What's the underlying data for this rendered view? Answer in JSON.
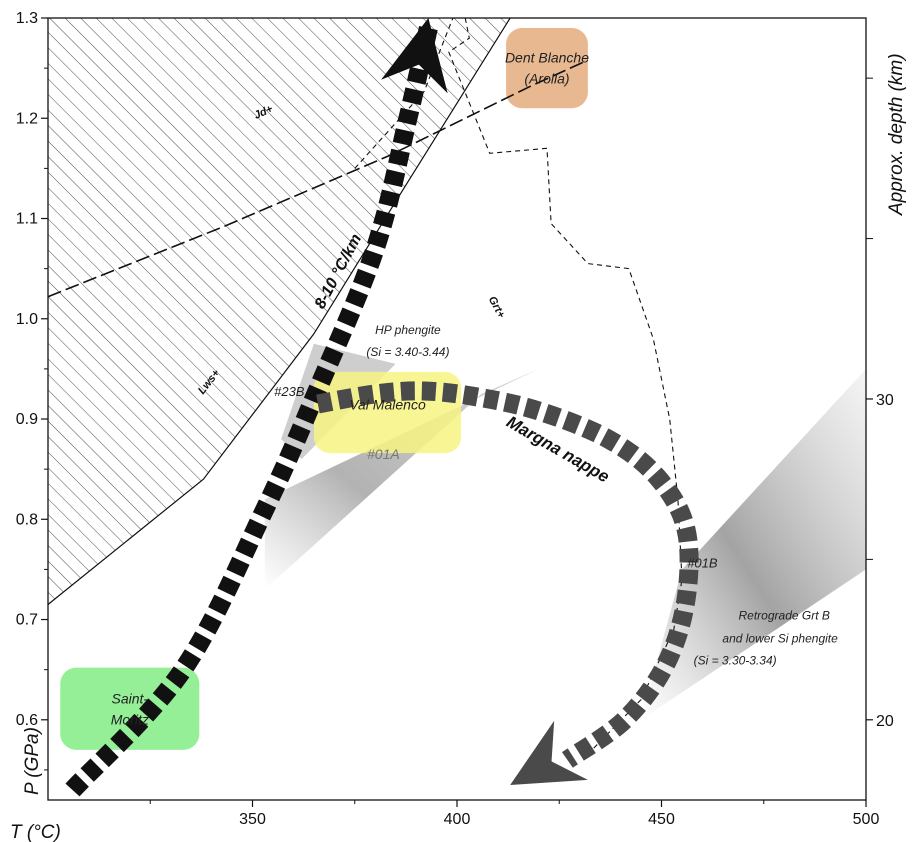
{
  "chart_data": {
    "type": "line",
    "xlabel": "T (°C)",
    "ylabel": "P (GPa)",
    "y2label": "Approx. depth (km)",
    "xlim": [
      300,
      500
    ],
    "ylim": [
      0.52,
      1.3
    ],
    "x_ticks": [
      350,
      400,
      450,
      500
    ],
    "y_ticks": [
      0.6,
      0.7,
      0.8,
      0.9,
      1.0,
      1.1,
      1.2,
      1.3
    ],
    "depth_ticks": [
      {
        "p": 0.92,
        "label": "30"
      },
      {
        "p": 0.6,
        "label": "20"
      }
    ],
    "grid": false,
    "series": [
      {
        "name": "prograde-path",
        "x": [
          306,
          333,
          353,
          366,
          380,
          388,
          393
        ],
        "y": [
          0.53,
          0.65,
          0.81,
          0.93,
          1.07,
          1.2,
          1.29
        ]
      },
      {
        "name": "Margna nappe",
        "x": [
          366,
          380,
          392,
          405,
          420,
          437,
          449,
          456,
          456,
          451,
          441,
          427
        ],
        "y": [
          0.915,
          0.925,
          0.928,
          0.922,
          0.908,
          0.88,
          0.842,
          0.79,
          0.72,
          0.655,
          0.6,
          0.56
        ]
      }
    ],
    "reaction_lines": [
      {
        "label": "Lws+",
        "style": "solid",
        "x": [
          300,
          338,
          365,
          387,
          413
        ],
        "y": [
          0.715,
          0.84,
          0.985,
          1.13,
          1.3
        ]
      },
      {
        "label": "Jd+",
        "style": "longdash",
        "x": [
          300,
          343,
          383,
          418,
          432
        ],
        "y": [
          1.022,
          1.092,
          1.162,
          1.232,
          1.258
        ]
      },
      {
        "label": "Grt+",
        "style": "dashed",
        "x": [
          402,
          403,
          398,
          408,
          422,
          423,
          432,
          442,
          448,
          452,
          454,
          455,
          453,
          445,
          433
        ],
        "y": [
          1.3,
          1.28,
          1.266,
          1.165,
          1.17,
          1.095,
          1.055,
          1.05,
          0.98,
          0.9,
          0.82,
          0.74,
          0.69,
          0.62,
          0.57
        ]
      },
      {
        "label": "",
        "style": "dashed",
        "x": [
          375,
          392,
          396,
          399,
          403
        ],
        "y": [
          1.15,
          1.227,
          1.269,
          1.3,
          1.3
        ]
      }
    ],
    "regions": [
      {
        "name": "dent-blanche",
        "label_lines": [
          "Dent Blanche",
          "(Arolla)"
        ],
        "color": "#E7B48A",
        "x": [
          412,
          432
        ],
        "y": [
          1.21,
          1.29
        ]
      },
      {
        "name": "val-malenco",
        "label_lines": [
          "Val Malenco"
        ],
        "color": "#F7F481",
        "x": [
          365,
          401
        ],
        "y": [
          0.866,
          0.947
        ]
      },
      {
        "name": "saint-moritz",
        "label_lines": [
          "Saint-",
          "Moritz"
        ],
        "color": "#8EEE91",
        "x": [
          303,
          337
        ],
        "y": [
          0.57,
          0.652
        ]
      }
    ],
    "annotations": [
      {
        "name": "gradient",
        "text": "8-10 °C/km",
        "x": 372,
        "y": 1.045,
        "angle": -62
      },
      {
        "name": "hp-phengite-1",
        "text": "HP phengite",
        "x": 388,
        "y": 0.985,
        "angle": 0
      },
      {
        "name": "hp-phengite-2",
        "text": "(Si = 3.40-3.44)",
        "x": 388,
        "y": 0.963,
        "angle": 0
      },
      {
        "name": "sample-23b",
        "text": "#23B",
        "x": 359,
        "y": 0.923,
        "angle": 0
      },
      {
        "name": "sample-01a",
        "text": "#01A",
        "x": 382,
        "y": 0.86,
        "angle": 0
      },
      {
        "name": "sample-01b",
        "text": "#01B",
        "x": 460,
        "y": 0.752,
        "angle": 0
      },
      {
        "name": "margna-label",
        "text": "Margna nappe",
        "x": 424,
        "y": 0.865,
        "angle": 30
      },
      {
        "name": "retro-1",
        "text": "Retrograde Grt B",
        "x": 480,
        "y": 0.7,
        "angle": 0
      },
      {
        "name": "retro-2",
        "text": "and lower Si phengite",
        "x": 479,
        "y": 0.677,
        "angle": 0
      },
      {
        "name": "retro-3",
        "text": "(Si = 3.30-3.34)",
        "x": 468,
        "y": 0.655,
        "angle": 0
      }
    ],
    "colors": {
      "prograde": "#111111",
      "margna": "#4A4A4A",
      "hatch": "#222222",
      "shade": "#B5B5B5"
    }
  }
}
